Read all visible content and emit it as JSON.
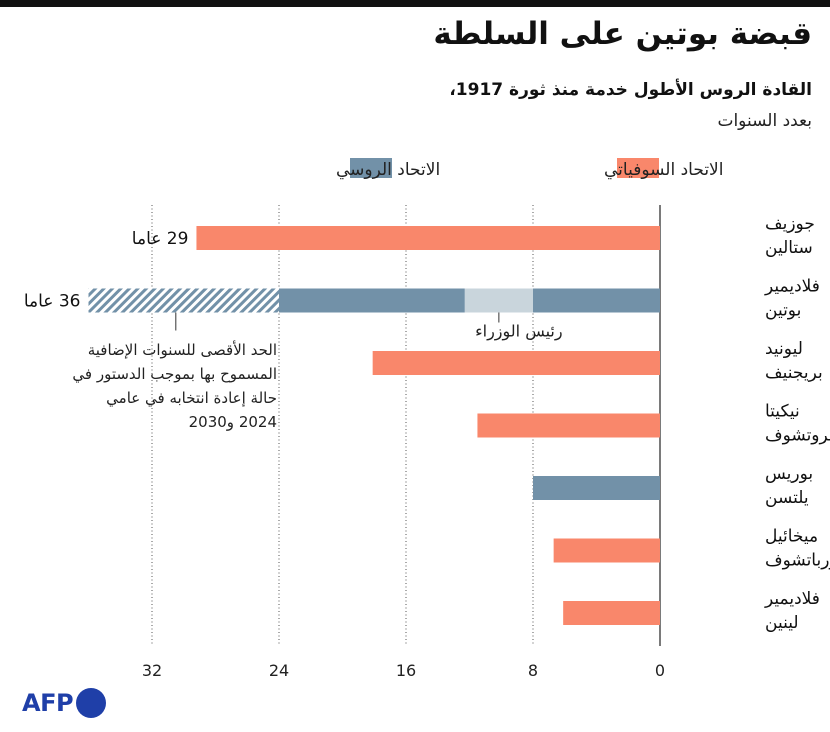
{
  "title": "قبضة بوتين على السلطة",
  "subtitle": "القادة الروس الأطول خدمة منذ ثورة 1917،",
  "subtitle2": "بعدد السنوات",
  "logo": "AFP",
  "colors": {
    "soviet": "#f9876b",
    "russian": "#7291a8",
    "pm": "#c9d5dc",
    "hatch": "#7291a8"
  },
  "chart_data": {
    "type": "bar",
    "orientation": "horizontal",
    "xlim": [
      0,
      36
    ],
    "xticks": [
      0,
      8,
      16,
      24,
      32
    ],
    "grid": true,
    "legend": [
      {
        "key": "soviet",
        "label": "الاتحاد السوفياتي"
      },
      {
        "key": "russian",
        "label": "الاتحاد الروسي"
      }
    ],
    "categories": [
      [
        "جوزيف",
        "ستالين"
      ],
      [
        "فلاديمير",
        "بوتين"
      ],
      [
        "ليونيد",
        "بريجنيف"
      ],
      [
        "نيكيتا",
        "خروتشوف"
      ],
      [
        "بوريس",
        "يلتسن"
      ],
      [
        "ميخائيل",
        "غورباتشوف"
      ],
      [
        "فلاديمير",
        "لينين"
      ]
    ],
    "bars": [
      {
        "segments": [
          {
            "from": 0,
            "to": 29.2,
            "kind": "soviet"
          }
        ],
        "label": "29 عاما"
      },
      {
        "segments": [
          {
            "from": 0,
            "to": 8,
            "kind": "russian"
          },
          {
            "from": 8,
            "to": 12.3,
            "kind": "pm"
          },
          {
            "from": 12.3,
            "to": 24,
            "kind": "russian"
          },
          {
            "from": 24,
            "to": 36,
            "kind": "hatch"
          }
        ],
        "label": "36 عاما"
      },
      {
        "segments": [
          {
            "from": 0,
            "to": 18.1,
            "kind": "soviet"
          }
        ]
      },
      {
        "segments": [
          {
            "from": 0,
            "to": 11.5,
            "kind": "soviet"
          }
        ]
      },
      {
        "segments": [
          {
            "from": 0,
            "to": 8,
            "kind": "russian"
          }
        ]
      },
      {
        "segments": [
          {
            "from": 0,
            "to": 6.7,
            "kind": "soviet"
          }
        ]
      },
      {
        "segments": [
          {
            "from": 0,
            "to": 6.1,
            "kind": "soviet"
          }
        ]
      }
    ],
    "annotations": {
      "pm": "رئيس الوزراء",
      "hatch": [
        "الحد الأقصى للسنوات الإضافية",
        "المسموح بها بموجب الدستور في",
        "حالة إعادة انتخابه في عامي",
        "2024 و2030"
      ]
    }
  }
}
